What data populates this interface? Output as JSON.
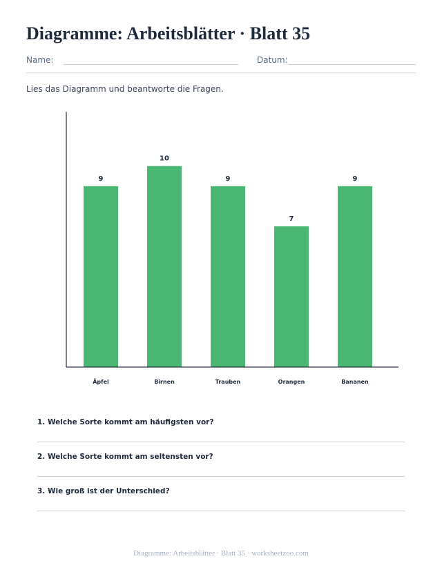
{
  "title": "Diagramme: Arbeitsblätter · Blatt 35",
  "fields": {
    "name_label": "Name:",
    "date_label": "Datum:"
  },
  "instructions": "Lies das Diagramm und beantworte die Fragen.",
  "colors": {
    "bar": "#4ab873",
    "axis": "#2a3344",
    "text": "#1f2a3c",
    "muted": "#a7b0c2"
  },
  "chart_data": {
    "type": "bar",
    "categories": [
      "Äpfel",
      "Birnen",
      "Trauben",
      "Orangen",
      "Bananen"
    ],
    "values": [
      9,
      10,
      9,
      7,
      9
    ],
    "title": "",
    "xlabel": "",
    "ylabel": "",
    "ylim": [
      0,
      12.7
    ],
    "grid": false,
    "data_labels": true
  },
  "questions": [
    "1. Welche Sorte kommt am häufigsten vor?",
    "2. Welche Sorte kommt am seltensten vor?",
    "3. Wie groß ist der Unterschied?"
  ],
  "footer": "Diagramme: Arbeitsblätter · Blatt 35 · worksheetzoo.com"
}
